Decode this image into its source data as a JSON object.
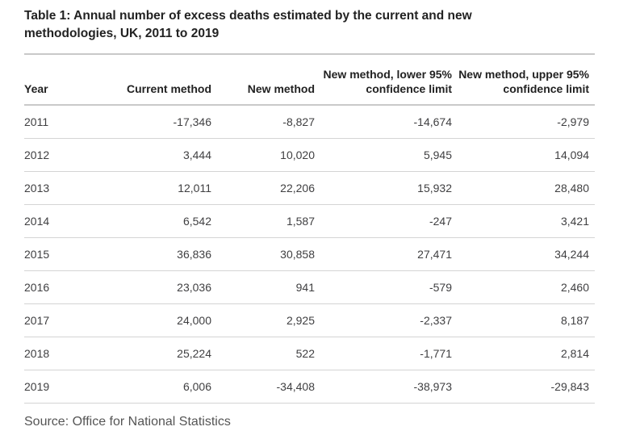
{
  "chart_data": {
    "type": "table",
    "title": "Table 1: Annual number of excess deaths estimated by the current and new methodologies, UK, 2011 to 2019",
    "columns": [
      "Year",
      "Current method",
      "New method",
      "New method, lower 95% confidence limit",
      "New method, upper 95% confidence limit"
    ],
    "rows": [
      [
        "2011",
        "-17,346",
        "-8,827",
        "-14,674",
        "-2,979"
      ],
      [
        "2012",
        "3,444",
        "10,020",
        "5,945",
        "14,094"
      ],
      [
        "2013",
        "12,011",
        "22,206",
        "15,932",
        "28,480"
      ],
      [
        "2014",
        "6,542",
        "1,587",
        "-247",
        "3,421"
      ],
      [
        "2015",
        "36,836",
        "30,858",
        "27,471",
        "34,244"
      ],
      [
        "2016",
        "23,036",
        "941",
        "-579",
        "2,460"
      ],
      [
        "2017",
        "24,000",
        "2,925",
        "-2,337",
        "8,187"
      ],
      [
        "2018",
        "25,224",
        "522",
        "-1,771",
        "2,814"
      ],
      [
        "2019",
        "6,006",
        "-34,408",
        "-38,973",
        "-29,843"
      ]
    ],
    "source": "Source: Office for National Statistics"
  },
  "colors": {
    "background": "#ffffff",
    "title_text": "#222222",
    "body_text": "#3f3f41",
    "source_text": "#555555",
    "heavy_rule": "#c9c9c9",
    "light_rule": "#d4d4d4"
  }
}
